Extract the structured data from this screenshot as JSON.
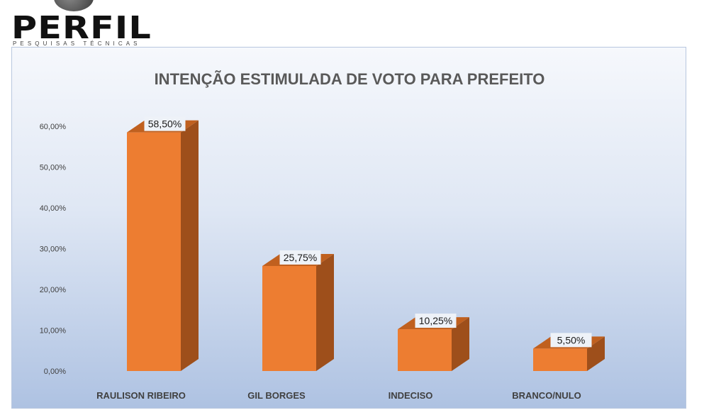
{
  "logo": {
    "name": "PERFIL",
    "tagline": "PESQUISAS TÉCNICAS"
  },
  "chart_data": {
    "type": "bar",
    "title": "INTENÇÃO ESTIMULADA DE VOTO PARA PREFEITO",
    "categories": [
      "RAULISON RIBEIRO",
      "GIL BORGES",
      "INDECISO",
      "BRANCO/NULO"
    ],
    "values": [
      58.5,
      25.75,
      10.25,
      5.5
    ],
    "value_labels": [
      "58,50%",
      "25,75%",
      "10,25%",
      "5,50%"
    ],
    "y_ticks": [
      "0,00%",
      "10,00%",
      "20,00%",
      "30,00%",
      "40,00%",
      "50,00%",
      "60,00%"
    ],
    "ylim": [
      0,
      60
    ],
    "bar_color": "#ed7d31",
    "bar_side_color": "#9e4f1b",
    "bar_top_color": "#c0601f",
    "grid": false,
    "legend": "none",
    "style": "3d-column"
  }
}
